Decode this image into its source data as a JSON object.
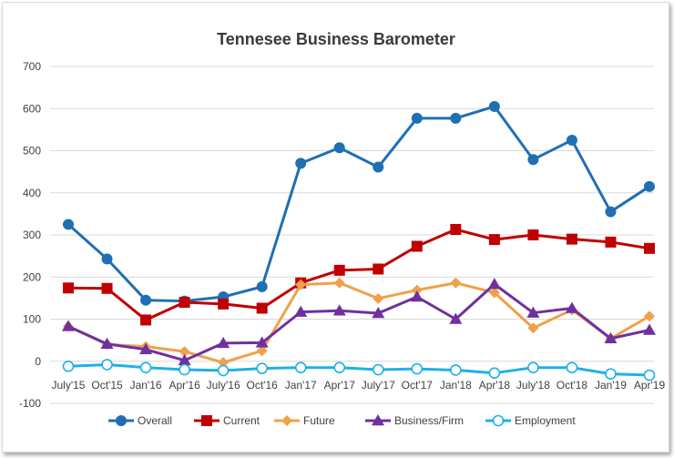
{
  "chart_data": {
    "type": "line",
    "title": "Tennesee Business Barometer",
    "xlabel": "",
    "ylabel": "",
    "categories": [
      "July'15",
      "Oct'15",
      "Jan'16",
      "Apr'16",
      "July'16",
      "Oct'16",
      "Jan'17",
      "Apr'17",
      "July'17",
      "Oct'17",
      "Jan'18",
      "Apr'18",
      "July'18",
      "Oct'18",
      "Jan'19",
      "Apr'19"
    ],
    "ylim": [
      -100,
      700
    ],
    "yticks": [
      -100,
      0,
      100,
      200,
      300,
      400,
      500,
      600,
      700
    ],
    "grid": "horizontal",
    "legend_position": "bottom",
    "series": [
      {
        "name": "Overall",
        "color": "#1f6fb5",
        "marker": "circle",
        "values": [
          325,
          243,
          145,
          143,
          153,
          177,
          470,
          507,
          461,
          577,
          577,
          605,
          479,
          525,
          355,
          415
        ]
      },
      {
        "name": "Current",
        "color": "#c00000",
        "marker": "square",
        "values": [
          174,
          173,
          98,
          140,
          136,
          126,
          186,
          216,
          219,
          273,
          313,
          289,
          300,
          290,
          283,
          268
        ]
      },
      {
        "name": "Future",
        "color": "#f0a04b",
        "marker": "diamond",
        "values": [
          83,
          40,
          35,
          23,
          -3,
          25,
          182,
          186,
          149,
          169,
          186,
          163,
          79,
          122,
          54,
          107
        ]
      },
      {
        "name": "Business/Firm",
        "color": "#7030a0",
        "marker": "triangle",
        "values": [
          83,
          41,
          28,
          2,
          43,
          44,
          117,
          120,
          114,
          153,
          100,
          183,
          115,
          126,
          54,
          74
        ]
      },
      {
        "name": "Employment",
        "color": "#1fb0e8",
        "marker": "circle-open",
        "values": [
          -12,
          -8,
          -15,
          -20,
          -22,
          -17,
          -15,
          -15,
          -20,
          -18,
          -21,
          -28,
          -15,
          -15,
          -30,
          -33
        ]
      }
    ]
  }
}
